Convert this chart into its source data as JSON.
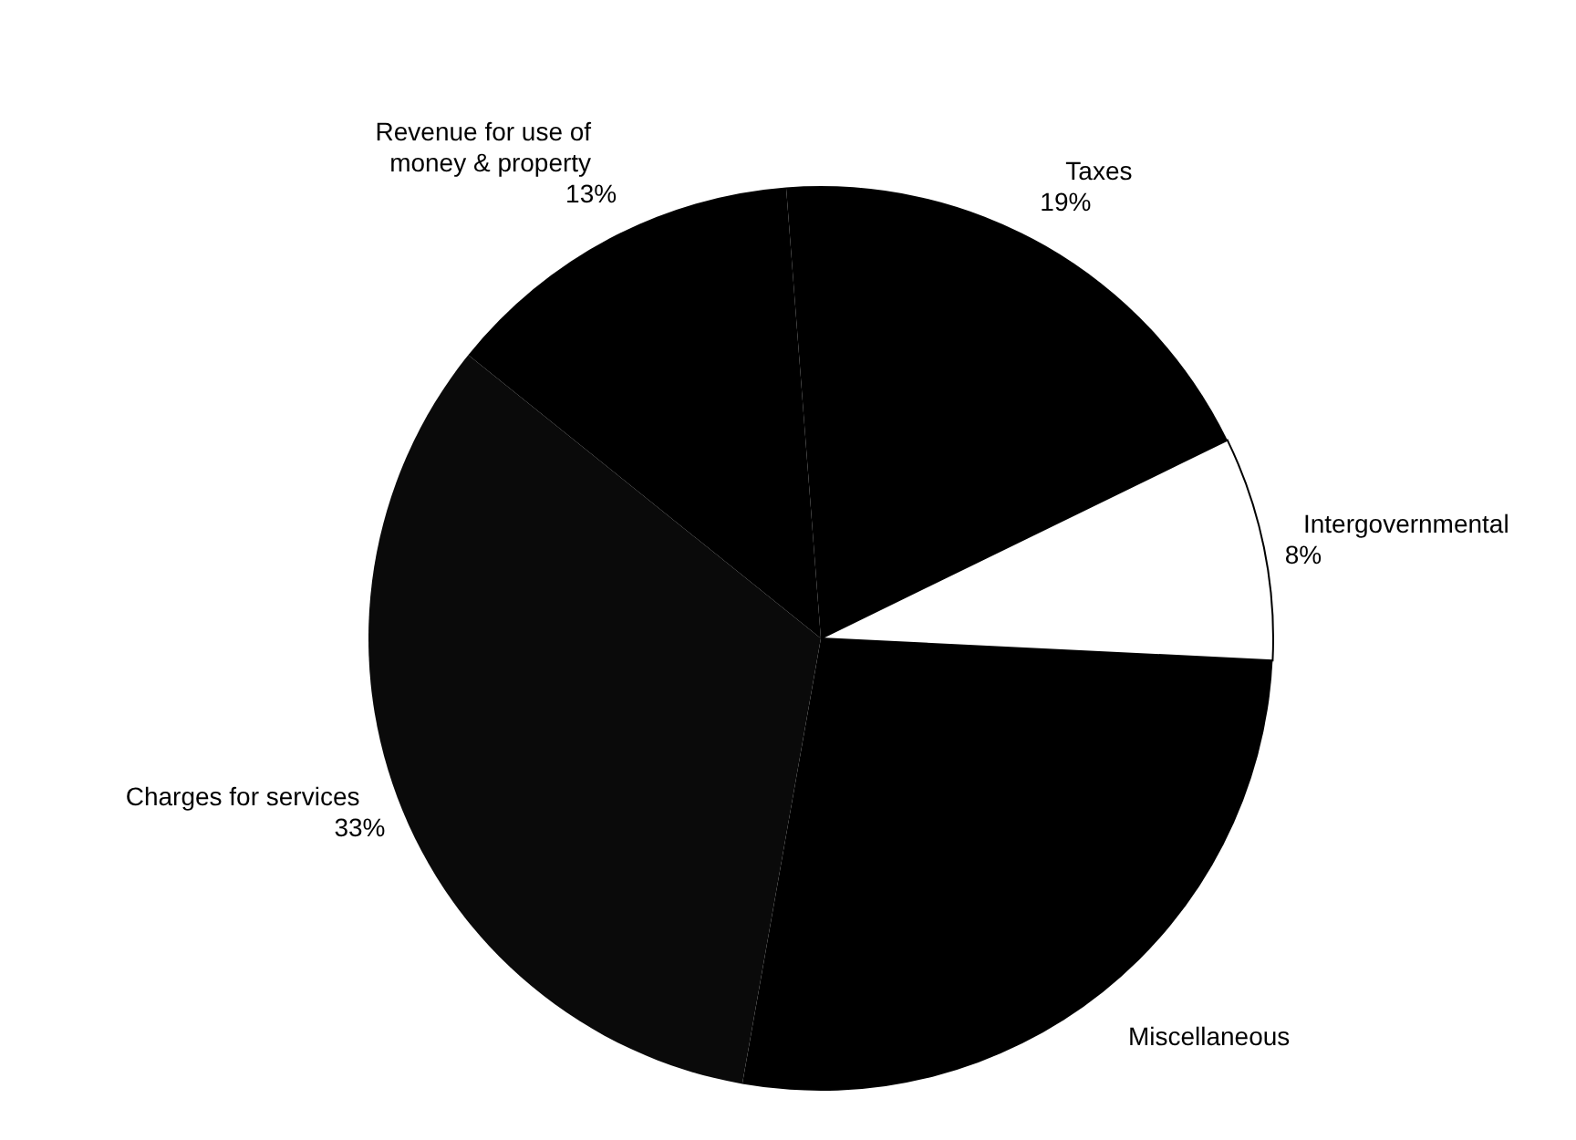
{
  "chart_data": {
    "type": "pie",
    "categories": [
      "Taxes",
      "Intergovernmental",
      "Miscellaneous",
      "Charges for services",
      "Revenue for use of money & property"
    ],
    "values": [
      19,
      8,
      27,
      33,
      13
    ],
    "value_labels": [
      "19%",
      "8%",
      null,
      "33%",
      "13%"
    ],
    "colors": [
      "#000000",
      "#ffffff",
      "#000000",
      "#0a0a0a",
      "#000000"
    ]
  }
}
